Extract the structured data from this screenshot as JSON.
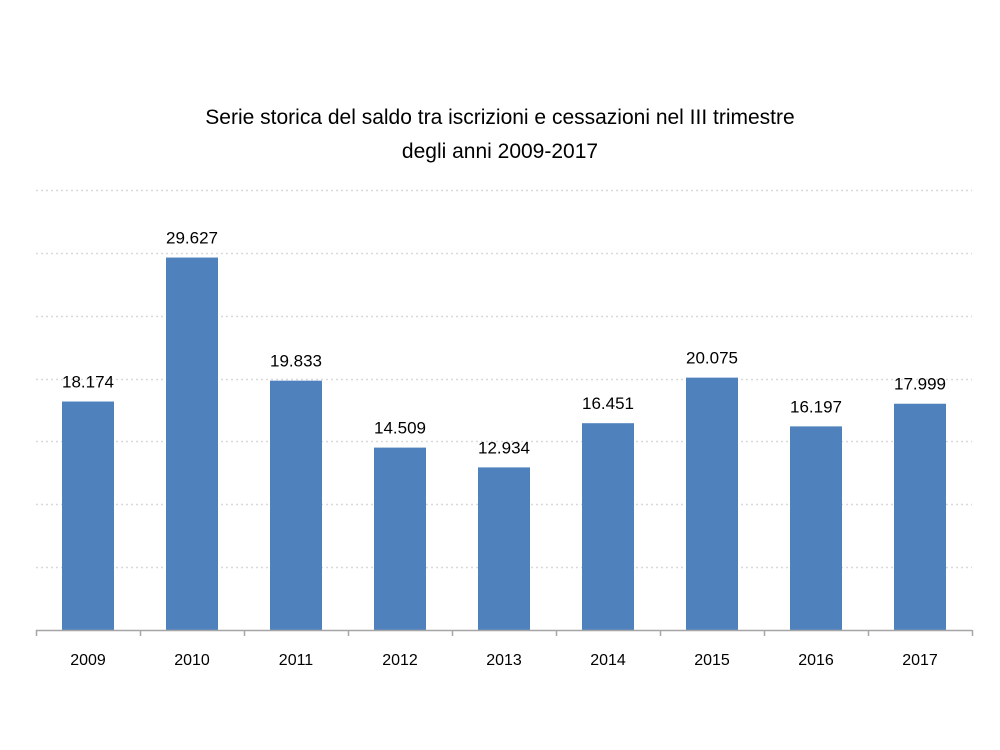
{
  "chart_data": {
    "type": "bar",
    "title_lines": [
      "Serie storica del saldo tra iscrizioni e cessazioni nel III trimestre",
      "degli anni 2009-2017"
    ],
    "categories": [
      "2009",
      "2010",
      "2011",
      "2012",
      "2013",
      "2014",
      "2015",
      "2016",
      "2017"
    ],
    "values": [
      18174,
      29627,
      19833,
      14509,
      12934,
      16451,
      20075,
      16197,
      17999
    ],
    "value_labels": [
      "18.174",
      "29.627",
      "19.833",
      "14.509",
      "12.934",
      "16.451",
      "20.075",
      "16.197",
      "17.999"
    ],
    "ylim": [
      0,
      35000
    ],
    "grid": true,
    "legend": "none",
    "bar_color": "#4f81bd",
    "grid_color": "#d9d9d9",
    "axis_color": "#a6a6a6"
  }
}
